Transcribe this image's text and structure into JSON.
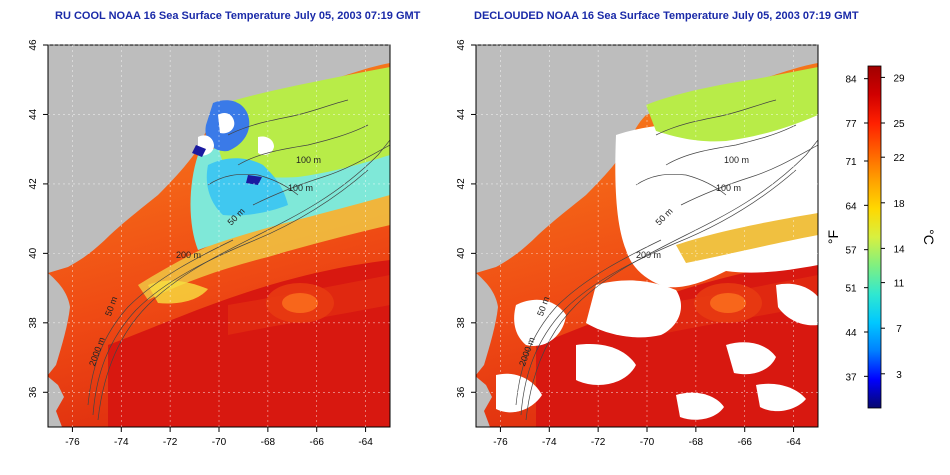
{
  "left_panel": {
    "title": "RU COOL NOAA 16 Sea Surface Temperature July 05, 2003 07:19 GMT",
    "lat_ticks": [
      "46",
      "44",
      "42",
      "40",
      "38",
      "36"
    ],
    "lon_ticks": [
      "-76",
      "-74",
      "-72",
      "-70",
      "-68",
      "-66",
      "-64"
    ],
    "contour_labels": [
      "100 m",
      "100 m",
      "50 m",
      "200 m",
      "50 m",
      "2000 m"
    ]
  },
  "right_panel": {
    "title": "DECLOUDED NOAA 16 Sea Surface Temperature July 05, 2003 07:19 GMT",
    "lat_ticks": [
      "46",
      "44",
      "42",
      "40",
      "38",
      "36"
    ],
    "lon_ticks": [
      "-76",
      "-74",
      "-72",
      "-70",
      "-68",
      "-66",
      "-64"
    ],
    "contour_labels": [
      "100 m",
      "100 m",
      "50 m",
      "200 m",
      "50 m",
      "2000 m"
    ]
  },
  "colorbar": {
    "f_label": "°F",
    "c_label": "°C",
    "f_ticks": [
      "84",
      "77",
      "71",
      "64",
      "57",
      "51",
      "44",
      "37"
    ],
    "c_ticks": [
      "29",
      "25",
      "22",
      "18",
      "14",
      "11",
      "7",
      "3"
    ],
    "f_values": [
      84,
      77,
      71,
      64,
      57,
      51,
      44,
      37
    ],
    "c_values": [
      29,
      25,
      22,
      18,
      14,
      11,
      7,
      3
    ],
    "c_range": [
      0,
      30
    ],
    "gradient": [
      "#08086e",
      "#0000ff",
      "#0080ff",
      "#00c8ff",
      "#30e8d0",
      "#80f080",
      "#d8f040",
      "#ffd800",
      "#ffa000",
      "#ff6000",
      "#ff2000",
      "#d00000",
      "#a00000"
    ]
  },
  "colors": {
    "land": "#bdbdbd",
    "cloud": "#ffffff",
    "warm_ocean": "#f25a1a",
    "hot_ocean": "#d8140e",
    "shelf_cool": "#7fe8d8",
    "gulf_maine": "#b8ec48",
    "contour": "#555555",
    "title": "#1a2aa8"
  }
}
